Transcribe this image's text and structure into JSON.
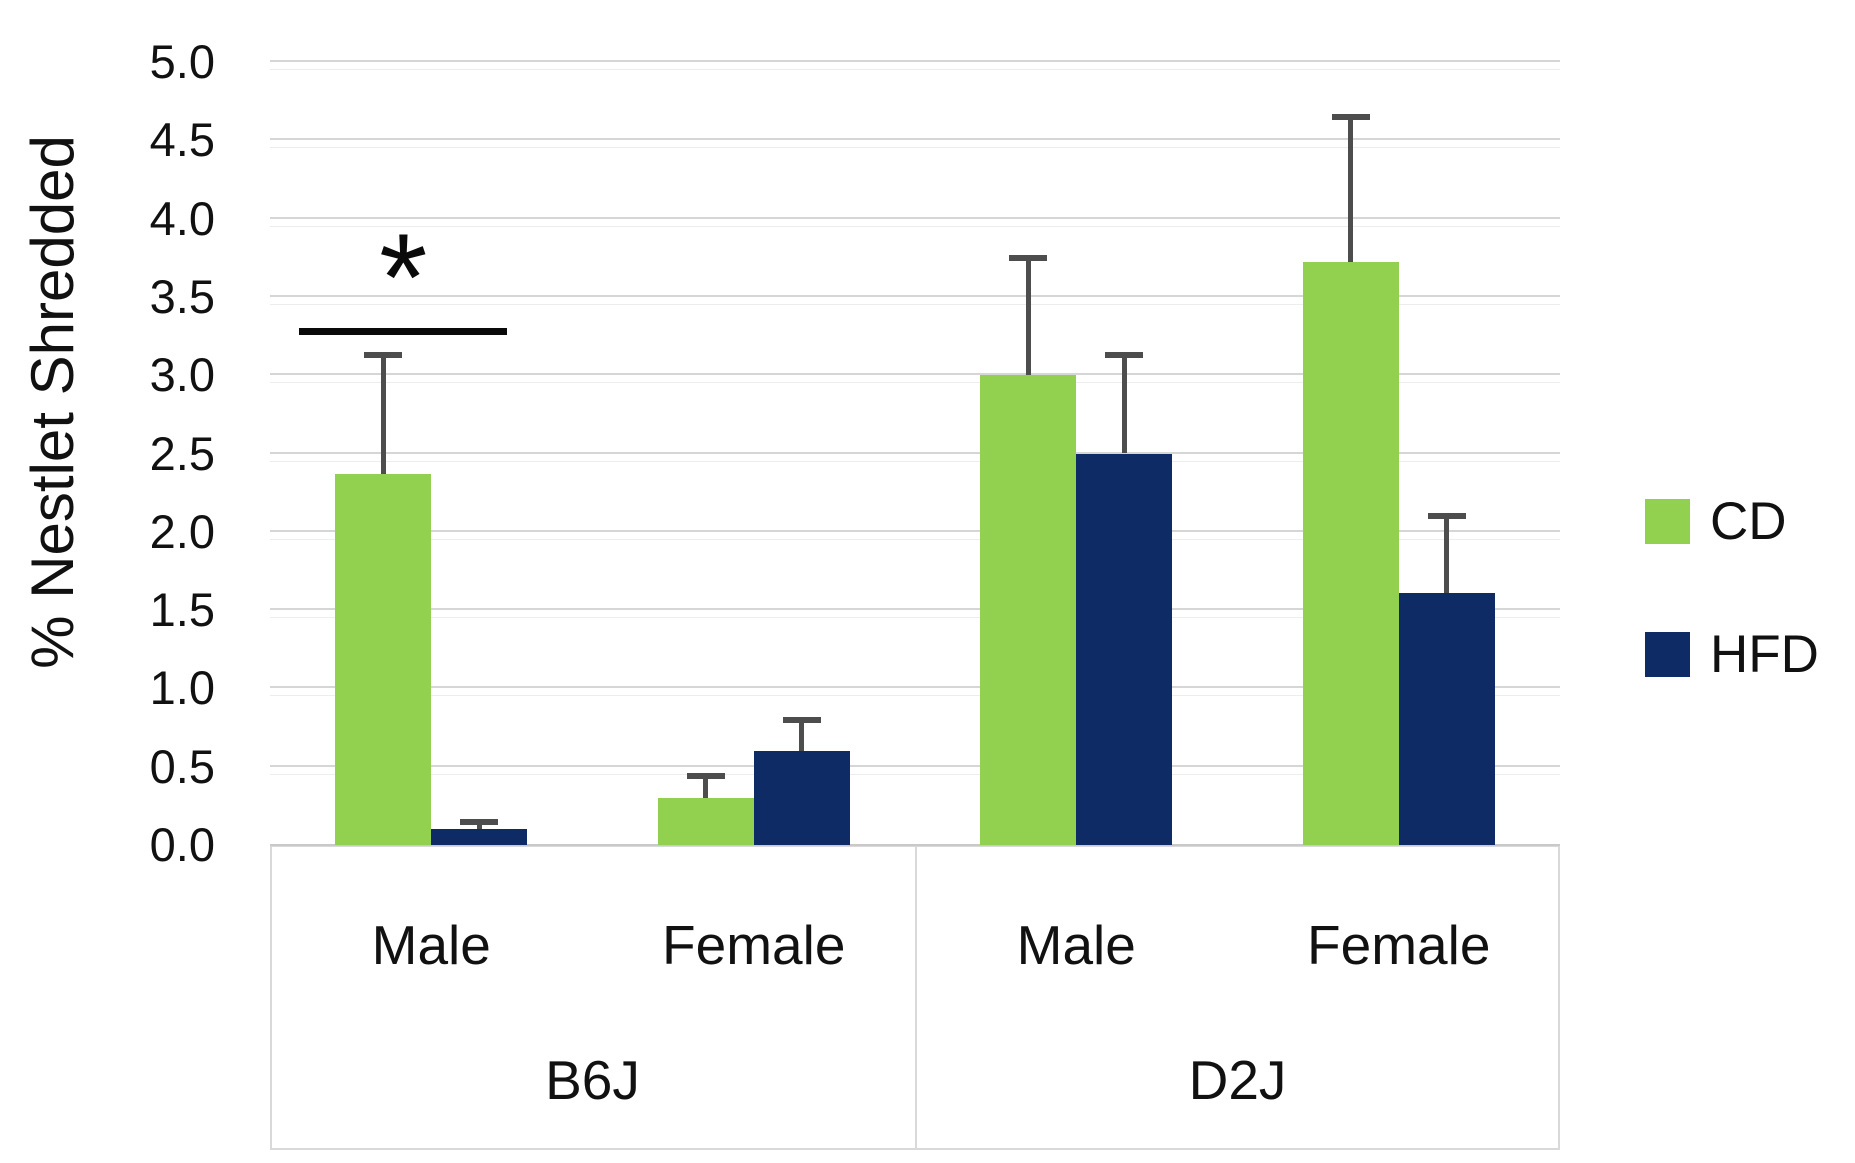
{
  "chart_data": {
    "type": "bar",
    "title": "",
    "ylabel": "% Nestlet Shredded",
    "xlabel": "",
    "ylim": [
      0,
      5
    ],
    "ytick_step": 0.5,
    "ytick_labels": [
      "0.0",
      "0.5",
      "1.0",
      "1.5",
      "2.0",
      "2.5",
      "3.0",
      "3.5",
      "4.0",
      "4.5",
      "5.0"
    ],
    "grid": true,
    "legend_position": "right",
    "groups": [
      {
        "label": "B6J",
        "categories": [
          "Male",
          "Female"
        ]
      },
      {
        "label": "D2J",
        "categories": [
          "Male",
          "Female"
        ]
      }
    ],
    "categories": [
      "Male",
      "Female",
      "Male",
      "Female"
    ],
    "series": [
      {
        "name": "CD",
        "color": "#92d050",
        "values": [
          2.37,
          0.3,
          3.0,
          3.72
        ],
        "errors_plus": [
          0.76,
          0.14,
          0.75,
          0.93
        ]
      },
      {
        "name": "HFD",
        "color": "#0e2b66",
        "values": [
          0.1,
          0.6,
          2.5,
          1.61
        ],
        "errors_plus": [
          0.05,
          0.2,
          0.63,
          0.49
        ]
      }
    ],
    "annotations": [
      {
        "type": "significance",
        "label": "*",
        "pair_index": 0,
        "line_value": 3.3,
        "star_value": 3.62
      }
    ],
    "error_bar_color": "#4d4d4d",
    "gridline_color": "#d6d6d6"
  }
}
